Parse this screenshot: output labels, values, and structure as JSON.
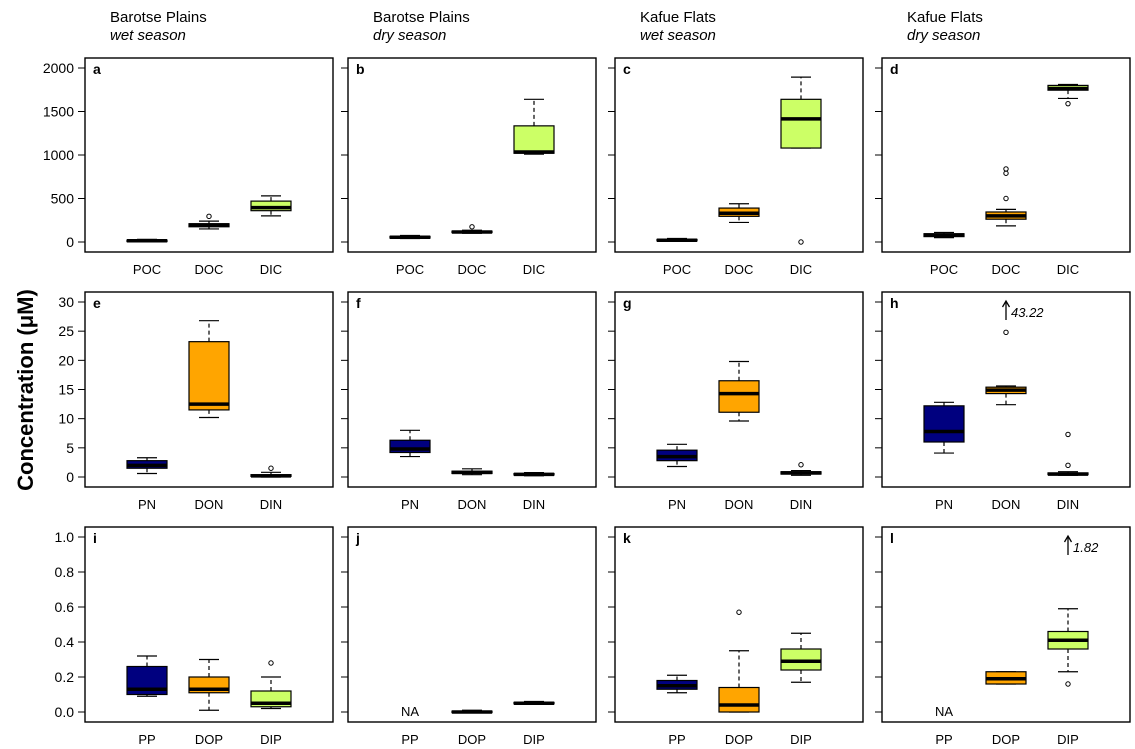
{
  "figure": {
    "ylabel": "Concentration (μM)",
    "columns": [
      {
        "site": "Barotse Plains",
        "season": "wet season"
      },
      {
        "site": "Barotse Plains",
        "season": "dry season"
      },
      {
        "site": "Kafue Flats",
        "season": "wet season"
      },
      {
        "site": "Kafue Flats",
        "season": "dry season"
      }
    ],
    "rows": [
      {
        "categories": [
          "POC",
          "DOC",
          "DIC"
        ],
        "ylim": [
          0,
          2000
        ],
        "yticks": [
          "0",
          "500",
          "1000",
          "1500",
          "2000"
        ],
        "ytick_values": [
          0,
          500,
          1000,
          1500,
          2000
        ]
      },
      {
        "categories": [
          "PN",
          "DON",
          "DIN"
        ],
        "ylim": [
          0,
          30
        ],
        "yticks": [
          "0",
          "5",
          "10",
          "15",
          "20",
          "25",
          "30"
        ],
        "ytick_values": [
          0,
          5,
          10,
          15,
          20,
          25,
          30
        ]
      },
      {
        "categories": [
          "PP",
          "DOP",
          "DIP"
        ],
        "ylim": [
          0,
          1
        ],
        "yticks": [
          "0.0",
          "0.2",
          "0.4",
          "0.6",
          "0.8",
          "1.0"
        ],
        "ytick_values": [
          0,
          0.2,
          0.4,
          0.6,
          0.8,
          1.0
        ]
      }
    ],
    "colors": {
      "particulate": "#00007f",
      "organic": "#ffa500",
      "inorganic": "#ccff66"
    }
  },
  "chart_data": {
    "type": "box",
    "panels": [
      {
        "label": "a",
        "row": 0,
        "col": 0,
        "boxes": [
          {
            "category": "POC",
            "min": 5,
            "q1": 10,
            "median": 15,
            "q3": 22,
            "max": 30,
            "outliers": []
          },
          {
            "category": "DOC",
            "min": 150,
            "q1": 175,
            "median": 195,
            "q3": 210,
            "max": 240,
            "outliers": [
              295
            ]
          },
          {
            "category": "DIC",
            "min": 300,
            "q1": 360,
            "median": 395,
            "q3": 470,
            "max": 530,
            "outliers": []
          }
        ]
      },
      {
        "label": "b",
        "row": 0,
        "col": 1,
        "boxes": [
          {
            "category": "POC",
            "min": 40,
            "q1": 45,
            "median": 55,
            "q3": 65,
            "max": 75,
            "outliers": []
          },
          {
            "category": "DOC",
            "min": 100,
            "q1": 108,
            "median": 115,
            "q3": 125,
            "max": 135,
            "outliers": [
              175
            ]
          },
          {
            "category": "DIC",
            "min": 1010,
            "q1": 1020,
            "median": 1035,
            "q3": 1335,
            "max": 1640,
            "outliers": []
          }
        ]
      },
      {
        "label": "c",
        "row": 0,
        "col": 2,
        "boxes": [
          {
            "category": "POC",
            "min": 10,
            "q1": 15,
            "median": 20,
            "q3": 30,
            "max": 40,
            "outliers": []
          },
          {
            "category": "DOC",
            "min": 225,
            "q1": 295,
            "median": 330,
            "q3": 390,
            "max": 440,
            "outliers": []
          },
          {
            "category": "DIC",
            "min": 1080,
            "q1": 1080,
            "median": 1415,
            "q3": 1640,
            "max": 1895,
            "outliers": [
              0
            ]
          }
        ]
      },
      {
        "label": "d",
        "row": 0,
        "col": 3,
        "boxes": [
          {
            "category": "POC",
            "min": 50,
            "q1": 62,
            "median": 80,
            "q3": 95,
            "max": 110,
            "outliers": []
          },
          {
            "category": "DOC",
            "min": 185,
            "q1": 262,
            "median": 300,
            "q3": 345,
            "max": 375,
            "outliers": [
              500,
              790,
              840
            ]
          },
          {
            "category": "DIC",
            "min": 1650,
            "q1": 1745,
            "median": 1765,
            "q3": 1800,
            "max": 1810,
            "outliers": [
              1590
            ]
          }
        ]
      },
      {
        "label": "e",
        "row": 1,
        "col": 0,
        "boxes": [
          {
            "category": "PN",
            "min": 0.6,
            "q1": 1.5,
            "median": 2.0,
            "q3": 2.8,
            "max": 3.3,
            "outliers": []
          },
          {
            "category": "DON",
            "min": 10.2,
            "q1": 11.5,
            "median": 12.5,
            "q3": 23.2,
            "max": 26.8,
            "outliers": []
          },
          {
            "category": "DIN",
            "min": 0.0,
            "q1": 0.1,
            "median": 0.2,
            "q3": 0.4,
            "max": 0.8,
            "outliers": [
              1.5
            ]
          }
        ]
      },
      {
        "label": "f",
        "row": 1,
        "col": 1,
        "boxes": [
          {
            "category": "PN",
            "min": 3.5,
            "q1": 4.2,
            "median": 4.8,
            "q3": 6.3,
            "max": 8.0,
            "outliers": []
          },
          {
            "category": "DON",
            "min": 0.4,
            "q1": 0.6,
            "median": 0.8,
            "q3": 1.0,
            "max": 1.4,
            "outliers": []
          },
          {
            "category": "DIN",
            "min": 0.2,
            "q1": 0.35,
            "median": 0.45,
            "q3": 0.6,
            "max": 0.75,
            "outliers": []
          }
        ]
      },
      {
        "label": "g",
        "row": 1,
        "col": 2,
        "boxes": [
          {
            "category": "PN",
            "min": 1.8,
            "q1": 2.8,
            "median": 3.5,
            "q3": 4.6,
            "max": 5.6,
            "outliers": []
          },
          {
            "category": "DON",
            "min": 9.6,
            "q1": 11.1,
            "median": 14.3,
            "q3": 16.5,
            "max": 19.8,
            "outliers": []
          },
          {
            "category": "DIN",
            "min": 0.3,
            "q1": 0.5,
            "median": 0.7,
            "q3": 0.9,
            "max": 1.1,
            "outliers": [
              2.1
            ]
          }
        ]
      },
      {
        "label": "h",
        "row": 1,
        "col": 3,
        "boxes": [
          {
            "category": "PN",
            "min": 4.1,
            "q1": 6.0,
            "median": 7.8,
            "q3": 12.2,
            "max": 12.8,
            "outliers": []
          },
          {
            "category": "DON",
            "min": 12.4,
            "q1": 14.3,
            "median": 14.9,
            "q3": 15.4,
            "max": 15.6,
            "outliers": [
              24.8
            ]
          },
          {
            "category": "DIN",
            "min": 0.3,
            "q1": 0.4,
            "median": 0.5,
            "q3": 0.7,
            "max": 0.9,
            "outliers": [
              2.0,
              7.3
            ]
          }
        ]
      },
      {
        "label": "i",
        "row": 2,
        "col": 0,
        "boxes": [
          {
            "category": "PP",
            "min": 0.09,
            "q1": 0.1,
            "median": 0.13,
            "q3": 0.26,
            "max": 0.32,
            "outliers": []
          },
          {
            "category": "DOP",
            "min": 0.01,
            "q1": 0.11,
            "median": 0.13,
            "q3": 0.2,
            "max": 0.3,
            "outliers": []
          },
          {
            "category": "DIP",
            "min": 0.02,
            "q1": 0.03,
            "median": 0.05,
            "q3": 0.12,
            "max": 0.2,
            "outliers": [
              0.28
            ]
          }
        ]
      },
      {
        "label": "j",
        "row": 2,
        "col": 1,
        "boxes": [
          {
            "category": "PP",
            "na": true
          },
          {
            "category": "DOP",
            "min": 0.0,
            "q1": 0.0,
            "median": 0.0,
            "q3": 0.005,
            "max": 0.01,
            "outliers": []
          },
          {
            "category": "DIP",
            "min": 0.045,
            "q1": 0.05,
            "median": 0.05,
            "q3": 0.055,
            "max": 0.06,
            "outliers": []
          }
        ]
      },
      {
        "label": "k",
        "row": 2,
        "col": 2,
        "boxes": [
          {
            "category": "PP",
            "min": 0.11,
            "q1": 0.13,
            "median": 0.15,
            "q3": 0.18,
            "max": 0.21,
            "outliers": []
          },
          {
            "category": "DOP",
            "min": 0.0,
            "q1": 0.0,
            "median": 0.04,
            "q3": 0.14,
            "max": 0.35,
            "outliers": [
              0.57
            ]
          },
          {
            "category": "DIP",
            "min": 0.17,
            "q1": 0.24,
            "median": 0.29,
            "q3": 0.36,
            "max": 0.45,
            "outliers": []
          }
        ]
      },
      {
        "label": "l",
        "row": 2,
        "col": 3,
        "boxes": [
          {
            "category": "PP",
            "na": true
          },
          {
            "category": "DOP",
            "min": 0.16,
            "q1": 0.16,
            "median": 0.19,
            "q3": 0.23,
            "max": 0.23,
            "outliers": []
          },
          {
            "category": "DIP",
            "min": 0.23,
            "q1": 0.36,
            "median": 0.41,
            "q3": 0.46,
            "max": 0.59,
            "outliers": [
              0.16
            ]
          }
        ]
      }
    ],
    "annotations": [
      {
        "panel": "h",
        "category": "DON",
        "text": "43.22"
      },
      {
        "panel": "l",
        "category": "DIP",
        "text": "1.82"
      }
    ],
    "na_label": "NA"
  }
}
